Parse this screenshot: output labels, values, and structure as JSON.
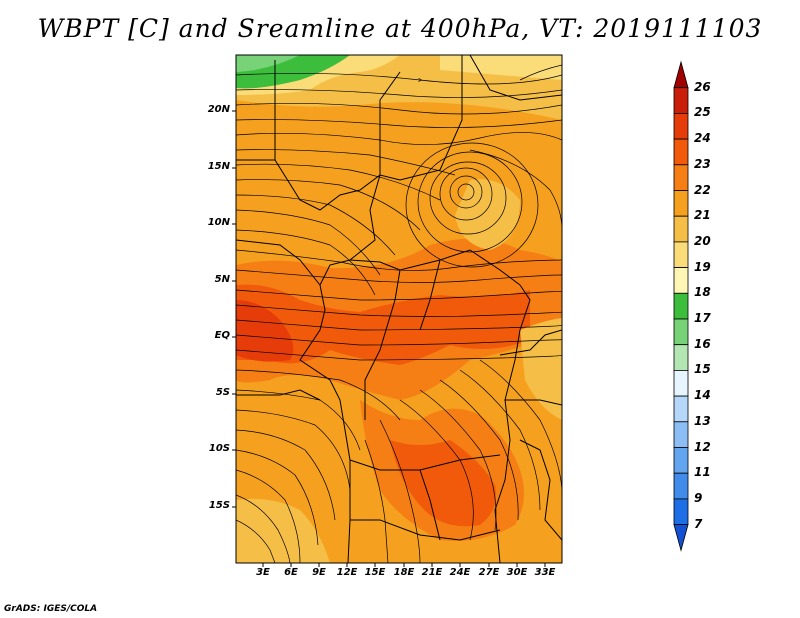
{
  "title": "WBPT [C] and Sreamline at 400hPa, VT: 2019111103",
  "footer": "GrADS: IGES/COLA",
  "lat_labels": [
    "20N",
    "15N",
    "10N",
    "5N",
    "EQ",
    "5S",
    "10S",
    "15S"
  ],
  "lon_labels": [
    "3E",
    "6E",
    "9E",
    "12E",
    "15E",
    "18E",
    "21E",
    "24E",
    "27E",
    "30E",
    "33E"
  ],
  "colorbar": {
    "labels": [
      "26",
      "25",
      "24",
      "23",
      "22",
      "21",
      "20",
      "19",
      "18",
      "17",
      "16",
      "15",
      "14",
      "13",
      "12",
      "11",
      "9",
      "7"
    ],
    "colors": [
      "#a00000",
      "#c81e0a",
      "#e63c0a",
      "#f05a0a",
      "#f57f14",
      "#f5a01e",
      "#f5be46",
      "#fadc78",
      "#fff5b4",
      "#3cbe3c",
      "#78d278",
      "#b4e6b4",
      "#e6f5ff",
      "#b4d7fa",
      "#8cbef5",
      "#64a5f0",
      "#418ceb",
      "#1e6ee6",
      "#1450d2"
    ]
  },
  "map": {
    "region": "Central Africa",
    "field": "WBPT",
    "level": "400hPa"
  }
}
